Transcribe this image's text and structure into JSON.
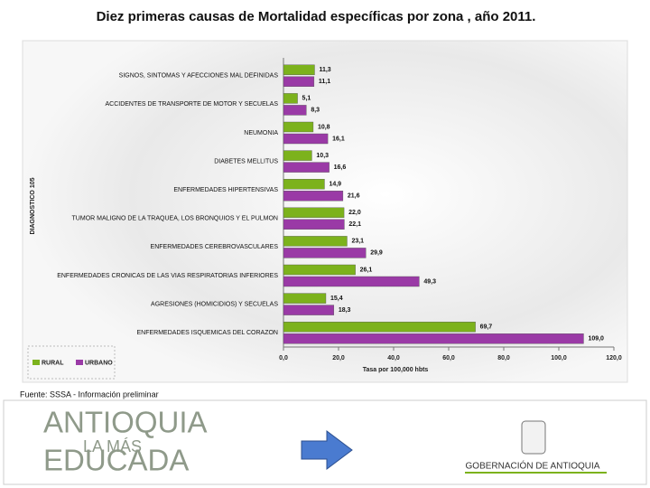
{
  "chart_data": {
    "type": "bar",
    "orientation": "horizontal",
    "title": "Diez primeras causas de Mortalidad específicas por zona , año 2011.",
    "x_label": "Tasa por 100,000 hbts",
    "y_label": "DIAGNOSTICO 105",
    "source": "Fuente: SSSA - Información preliminar",
    "categories": [
      "SIGNOS, SINTOMAS Y AFECCIONES MAL DEFINIDAS",
      "ACCIDENTES DE TRANSPORTE DE MOTOR Y SECUELAS",
      "NEUMONIA",
      "DIABETES MELLITUS",
      "ENFERMEDADES HIPERTENSIVAS",
      "TUMOR MALIGNO DE LA TRAQUEA, LOS BRONQUIOS Y EL PULMON",
      "ENFERMEDADES CEREBROVASCULARES",
      "ENFERMEDADES CRONICAS DE LAS VIAS RESPIRATORIAS INFERIORES",
      "AGRESIONES (HOMICIDIOS) Y SECUELAS",
      "ENFERMEDADES ISQUEMICAS DEL CORAZON"
    ],
    "series": [
      {
        "name": "RURAL",
        "color": "#7cb21c",
        "values": [
          11.3,
          5.1,
          10.8,
          10.3,
          14.9,
          22.0,
          23.1,
          26.1,
          15.4,
          69.7
        ],
        "value_labels": [
          "11,3",
          "5,1",
          "10,8",
          "10,3",
          "14,9",
          "22,0",
          "23,1",
          "26,1",
          "15,4",
          "69,7"
        ]
      },
      {
        "name": "URBANO",
        "color": "#9a3aa6",
        "values": [
          11.1,
          8.3,
          16.1,
          16.6,
          21.6,
          22.1,
          29.9,
          49.3,
          18.3,
          109.0
        ],
        "value_labels": [
          "11,1",
          "8,3",
          "16,1",
          "16,6",
          "21,6",
          "22,1",
          "29,9",
          "49,3",
          "18,3",
          "109,0"
        ]
      }
    ],
    "xlim": [
      0,
      120
    ],
    "xticks": [
      {
        "value": 0,
        "label": "0,0"
      },
      {
        "value": 20,
        "label": "20,0"
      },
      {
        "value": 40,
        "label": "40,0"
      },
      {
        "value": 60,
        "label": "60,0"
      },
      {
        "value": 80,
        "label": "80,0"
      },
      {
        "value": 100,
        "label": "100,0"
      },
      {
        "value": 120,
        "label": "120,0"
      }
    ],
    "legend": "bottom-left"
  },
  "footer": {
    "logo_line1": "ANTIOQUIA",
    "logo_line2": "LA MÁS",
    "logo_line3": "EDUCADA",
    "government": "GOBERNACIÓN DE ANTIOQUIA"
  }
}
